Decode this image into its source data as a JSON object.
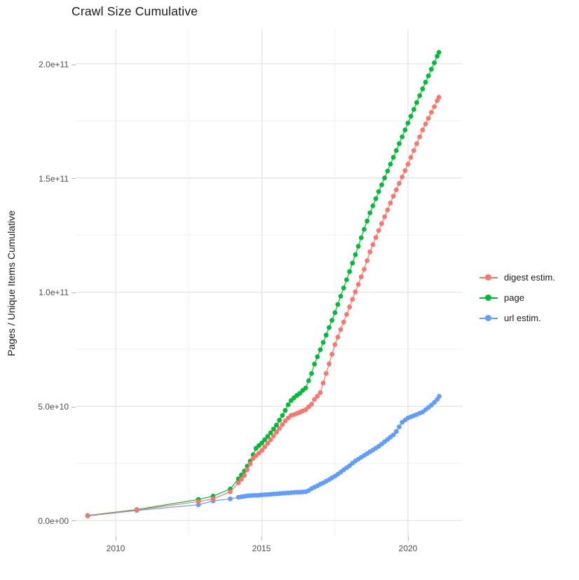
{
  "title": "Crawl Size Cumulative",
  "y_axis": {
    "label": "Pages / Unique Items Cumulative",
    "ticks": [
      "0.0e+00",
      "5.0e+10",
      "1.0e+11",
      "1.5e+11",
      "2.0e+11"
    ],
    "tick_values_billions": [
      0,
      50,
      100,
      150,
      200
    ],
    "minor_values_billions": [
      25,
      75,
      125,
      175
    ]
  },
  "x_axis": {
    "label": "",
    "ticks": [
      "2010",
      "2015",
      "2020"
    ],
    "tick_values": [
      2010,
      2015,
      2020
    ],
    "minor_values": [
      2012.5,
      2017.5
    ]
  },
  "legend": {
    "position": "right",
    "items": [
      {
        "label": "digest estim.",
        "color": "#f8766d"
      },
      {
        "label": "page",
        "color": "#00ba38"
      },
      {
        "label": "url estim.",
        "color": "#619cff"
      }
    ]
  },
  "chart_data": {
    "type": "line",
    "title": "Crawl Size Cumulative",
    "xlabel": "",
    "ylabel": "Pages / Unique Items Cumulative",
    "x_unit": "year (decimal)",
    "y_unit": "items, stored in billions (1e9)",
    "xlim": [
      2008.63,
      2021.87
    ],
    "ylim_billions": [
      -7,
      215
    ],
    "grid": true,
    "legend_position": "right",
    "series": [
      {
        "name": "url estim.",
        "color": "#619cff",
        "points": [
          [
            2009.04,
            2
          ],
          [
            2010.72,
            4.4
          ],
          [
            2012.83,
            6.9
          ],
          [
            2013.33,
            8.6
          ],
          [
            2013.92,
            9.5
          ],
          [
            2014.2,
            10.2
          ],
          [
            2014.3,
            10.4
          ],
          [
            2014.4,
            10.6
          ],
          [
            2014.5,
            10.8
          ],
          [
            2014.6,
            10.9
          ],
          [
            2014.7,
            11
          ],
          [
            2014.8,
            11
          ],
          [
            2014.9,
            11.1
          ],
          [
            2015,
            11.2
          ],
          [
            2015.1,
            11.3
          ],
          [
            2015.2,
            11.4
          ],
          [
            2015.3,
            11.5
          ],
          [
            2015.4,
            11.6
          ],
          [
            2015.5,
            11.7
          ],
          [
            2015.6,
            11.8
          ],
          [
            2015.7,
            11.9
          ],
          [
            2015.8,
            12
          ],
          [
            2015.9,
            12.1
          ],
          [
            2016,
            12.2
          ],
          [
            2016.1,
            12.3
          ],
          [
            2016.2,
            12.4
          ],
          [
            2016.3,
            12.4
          ],
          [
            2016.4,
            12.5
          ],
          [
            2016.5,
            12.6
          ],
          [
            2016.6,
            13.1
          ],
          [
            2016.7,
            14
          ],
          [
            2016.8,
            14.6
          ],
          [
            2016.9,
            15.2
          ],
          [
            2017,
            15.9
          ],
          [
            2017.1,
            16.5
          ],
          [
            2017.2,
            17.2
          ],
          [
            2017.3,
            17.9
          ],
          [
            2017.4,
            18.7
          ],
          [
            2017.5,
            19.4
          ],
          [
            2017.6,
            20.3
          ],
          [
            2017.7,
            21.2
          ],
          [
            2017.8,
            22.2
          ],
          [
            2017.9,
            23.1
          ],
          [
            2018,
            24
          ],
          [
            2018.1,
            25.1
          ],
          [
            2018.2,
            26.1
          ],
          [
            2018.3,
            26.9
          ],
          [
            2018.4,
            27.7
          ],
          [
            2018.5,
            28.5
          ],
          [
            2018.6,
            29.3
          ],
          [
            2018.7,
            30.1
          ],
          [
            2018.8,
            30.9
          ],
          [
            2018.9,
            31.7
          ],
          [
            2019,
            32.5
          ],
          [
            2019.1,
            33.5
          ],
          [
            2019.2,
            34.5
          ],
          [
            2019.3,
            35.5
          ],
          [
            2019.4,
            36.5
          ],
          [
            2019.5,
            37.5
          ],
          [
            2019.6,
            39
          ],
          [
            2019.7,
            41
          ],
          [
            2019.8,
            43
          ],
          [
            2019.9,
            44
          ],
          [
            2020,
            44.9
          ],
          [
            2020.1,
            45.4
          ],
          [
            2020.2,
            45.9
          ],
          [
            2020.3,
            46.4
          ],
          [
            2020.4,
            47
          ],
          [
            2020.5,
            47.5
          ],
          [
            2020.6,
            48.5
          ],
          [
            2020.7,
            49.5
          ],
          [
            2020.8,
            50.5
          ],
          [
            2020.9,
            51.7
          ],
          [
            2021,
            53
          ],
          [
            2021.07,
            54.4
          ]
        ]
      },
      {
        "name": "page",
        "color": "#00ba38",
        "points": [
          [
            2009.04,
            2.2
          ],
          [
            2010.72,
            4.8
          ],
          [
            2012.83,
            9.2
          ],
          [
            2013.33,
            10.7
          ],
          [
            2013.92,
            13.8
          ],
          [
            2014.2,
            18.3
          ],
          [
            2014.3,
            20
          ],
          [
            2014.4,
            21.7
          ],
          [
            2014.5,
            23.8
          ],
          [
            2014.6,
            26
          ],
          [
            2014.7,
            28.8
          ],
          [
            2014.8,
            31.6
          ],
          [
            2014.9,
            32.8
          ],
          [
            2015,
            34
          ],
          [
            2015.1,
            35.4
          ],
          [
            2015.2,
            36.8
          ],
          [
            2015.3,
            38.4
          ],
          [
            2015.4,
            40.1
          ],
          [
            2015.5,
            41.8
          ],
          [
            2015.6,
            43.9
          ],
          [
            2015.7,
            46
          ],
          [
            2015.8,
            48.2
          ],
          [
            2015.9,
            50.7
          ],
          [
            2016,
            52.5
          ],
          [
            2016.1,
            53.7
          ],
          [
            2016.2,
            54.8
          ],
          [
            2016.3,
            55.7
          ],
          [
            2016.4,
            57
          ],
          [
            2016.5,
            58
          ],
          [
            2016.6,
            61.2
          ],
          [
            2016.7,
            64.4
          ],
          [
            2016.8,
            68.5
          ],
          [
            2016.9,
            71.7
          ],
          [
            2017,
            74.8
          ],
          [
            2017.1,
            78
          ],
          [
            2017.2,
            81.2
          ],
          [
            2017.3,
            84.5
          ],
          [
            2017.4,
            87.7
          ],
          [
            2017.5,
            91
          ],
          [
            2017.6,
            94.6
          ],
          [
            2017.7,
            98.2
          ],
          [
            2017.8,
            101.8
          ],
          [
            2017.9,
            105.4
          ],
          [
            2018,
            109
          ],
          [
            2018.1,
            112.7
          ],
          [
            2018.2,
            116.4
          ],
          [
            2018.3,
            120.1
          ],
          [
            2018.4,
            123.8
          ],
          [
            2018.5,
            127.5
          ],
          [
            2018.6,
            131.1
          ],
          [
            2018.7,
            134.7
          ],
          [
            2018.8,
            137.8
          ],
          [
            2018.9,
            140.9
          ],
          [
            2019,
            144
          ],
          [
            2019.1,
            147
          ],
          [
            2019.2,
            150
          ],
          [
            2019.3,
            153
          ],
          [
            2019.4,
            156
          ],
          [
            2019.5,
            159
          ],
          [
            2019.6,
            162
          ],
          [
            2019.7,
            165
          ],
          [
            2019.8,
            168
          ],
          [
            2019.9,
            171
          ],
          [
            2020,
            174
          ],
          [
            2020.1,
            177
          ],
          [
            2020.2,
            180
          ],
          [
            2020.3,
            183
          ],
          [
            2020.4,
            186
          ],
          [
            2020.5,
            189
          ],
          [
            2020.6,
            191.9
          ],
          [
            2020.7,
            194.7
          ],
          [
            2020.8,
            197.6
          ],
          [
            2020.9,
            200.4
          ],
          [
            2021,
            203.3
          ],
          [
            2021.06,
            205
          ]
        ]
      },
      {
        "name": "digest estim.",
        "color": "#f8766d",
        "points": [
          [
            2009.04,
            2.1
          ],
          [
            2010.72,
            4.6
          ],
          [
            2012.83,
            8.3
          ],
          [
            2013.33,
            9.5
          ],
          [
            2013.92,
            12.6
          ],
          [
            2014.2,
            16.5
          ],
          [
            2014.3,
            18.1
          ],
          [
            2014.4,
            19.7
          ],
          [
            2014.5,
            22.2
          ],
          [
            2014.6,
            24.8
          ],
          [
            2014.7,
            27.2
          ],
          [
            2014.8,
            28.4
          ],
          [
            2014.9,
            29.5
          ],
          [
            2015,
            30.7
          ],
          [
            2015.1,
            32.2
          ],
          [
            2015.2,
            33.8
          ],
          [
            2015.3,
            35.3
          ],
          [
            2015.4,
            37
          ],
          [
            2015.5,
            38.7
          ],
          [
            2015.6,
            40.3
          ],
          [
            2015.7,
            42
          ],
          [
            2015.8,
            43.6
          ],
          [
            2015.9,
            44.9
          ],
          [
            2016,
            46
          ],
          [
            2016.1,
            46.4
          ],
          [
            2016.2,
            46.9
          ],
          [
            2016.3,
            47.4
          ],
          [
            2016.4,
            48
          ],
          [
            2016.5,
            48.5
          ],
          [
            2016.6,
            49.7
          ],
          [
            2016.7,
            50.9
          ],
          [
            2016.8,
            53
          ],
          [
            2016.9,
            54.4
          ],
          [
            2017,
            56
          ],
          [
            2017.1,
            60.2
          ],
          [
            2017.2,
            64.4
          ],
          [
            2017.3,
            68.6
          ],
          [
            2017.4,
            72.8
          ],
          [
            2017.5,
            77
          ],
          [
            2017.6,
            80.3
          ],
          [
            2017.7,
            83.6
          ],
          [
            2017.8,
            86.9
          ],
          [
            2017.9,
            90.2
          ],
          [
            2018,
            93.5
          ],
          [
            2018.1,
            96.8
          ],
          [
            2018.2,
            100.1
          ],
          [
            2018.3,
            103.4
          ],
          [
            2018.4,
            106.7
          ],
          [
            2018.5,
            110
          ],
          [
            2018.6,
            113.8
          ],
          [
            2018.7,
            117.6
          ],
          [
            2018.8,
            120.8
          ],
          [
            2018.9,
            123.9
          ],
          [
            2019,
            127
          ],
          [
            2019.1,
            130
          ],
          [
            2019.2,
            133
          ],
          [
            2019.3,
            136
          ],
          [
            2019.4,
            139
          ],
          [
            2019.5,
            142
          ],
          [
            2019.6,
            144.8
          ],
          [
            2019.7,
            147.6
          ],
          [
            2019.8,
            150.4
          ],
          [
            2019.9,
            153.2
          ],
          [
            2020,
            156
          ],
          [
            2020.1,
            159
          ],
          [
            2020.2,
            162
          ],
          [
            2020.3,
            165
          ],
          [
            2020.4,
            168
          ],
          [
            2020.5,
            171
          ],
          [
            2020.6,
            173.6
          ],
          [
            2020.7,
            176.1
          ],
          [
            2020.8,
            178.7
          ],
          [
            2020.9,
            181.2
          ],
          [
            2021,
            183.8
          ],
          [
            2021.06,
            185.3
          ]
        ]
      }
    ]
  }
}
